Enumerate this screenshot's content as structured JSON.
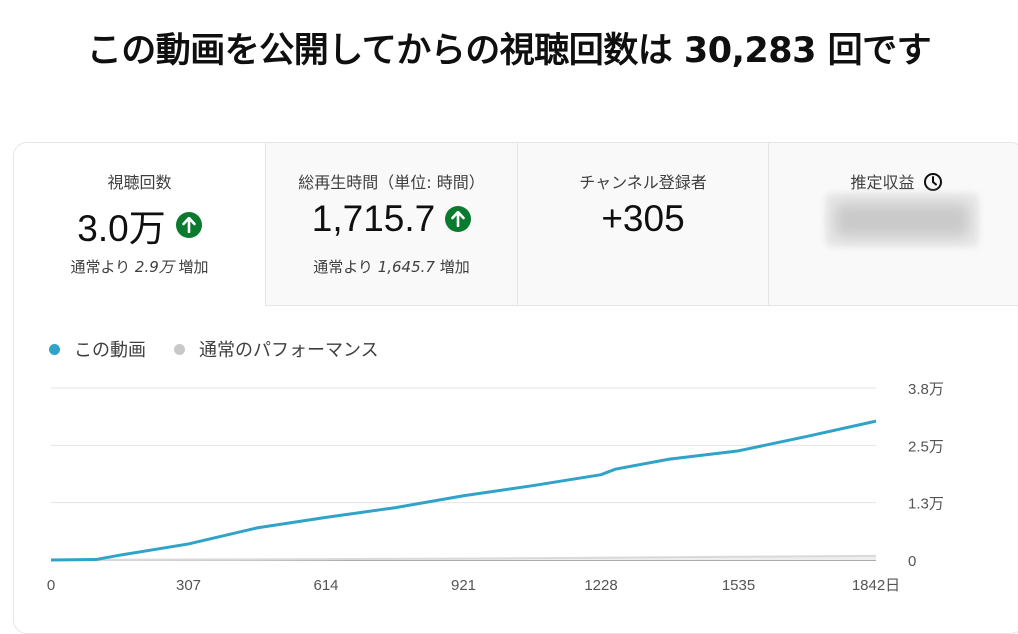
{
  "headline": "この動画を公開してからの視聴回数は 30,283 回です",
  "metrics": [
    {
      "title": "視聴回数",
      "value": "3.0万",
      "trend": "up",
      "note_prefix": "通常より ",
      "note_value": "2.9万",
      "note_suffix": " 増加"
    },
    {
      "title": "総再生時間（単位: 時間）",
      "value": "1,715.7",
      "trend": "up",
      "note_prefix": "通常より ",
      "note_value": "1,645.7",
      "note_suffix": " 増加"
    },
    {
      "title": "チャンネル登録者",
      "value": "+305"
    },
    {
      "title": "推定収益",
      "icon": "clock-icon",
      "value_hidden": true
    }
  ],
  "legend": [
    {
      "label": "この動画",
      "color": "#2fa3c8"
    },
    {
      "label": "通常のパフォーマンス",
      "color": "#c8c8c8"
    }
  ],
  "colors": {
    "accent": "#2fa3c8",
    "up_badge": "#0a7a2f",
    "typical": "#d9d9d9"
  },
  "chart_data": {
    "type": "line",
    "x_ticks": [
      "0",
      "307",
      "614",
      "921",
      "1228",
      "1535",
      "1842日"
    ],
    "y_ticks": [
      "0",
      "1.3万",
      "2.5万",
      "3.8万"
    ],
    "xlim": [
      0,
      1842
    ],
    "ylim": [
      0,
      37500
    ],
    "grid": true,
    "legend_position": "top-left",
    "series": [
      {
        "name": "この動画",
        "x": [
          0,
          100,
          150,
          307,
          460,
          614,
          768,
          921,
          1075,
          1228,
          1260,
          1381,
          1535,
          1690,
          1842
        ],
        "y": [
          0,
          100,
          1000,
          3500,
          7000,
          9300,
          11400,
          14000,
          16200,
          18600,
          19800,
          22000,
          23800,
          27000,
          30283
        ]
      },
      {
        "name": "通常のパフォーマンス",
        "x": [
          0,
          307,
          614,
          921,
          1228,
          1535,
          1842
        ],
        "y": [
          0,
          100,
          200,
          300,
          500,
          700,
          900
        ]
      }
    ]
  }
}
